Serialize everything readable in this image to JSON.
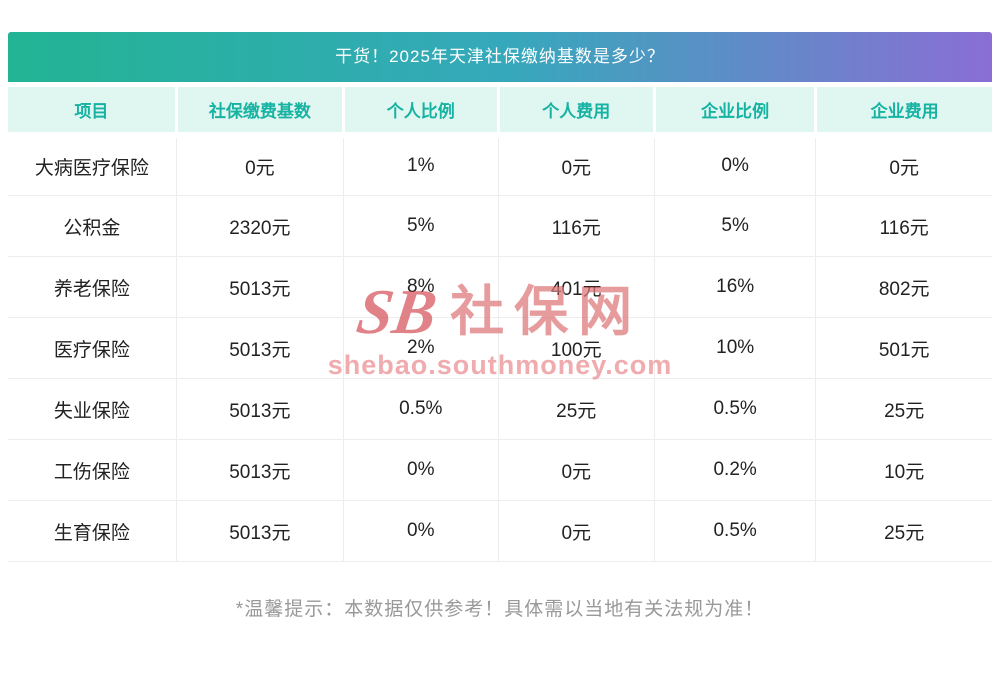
{
  "title": "干货！2025年天津社保缴纳基数是多少？",
  "table": {
    "headers": [
      "项目",
      "社保缴费基数",
      "个人比例",
      "个人费用",
      "企业比例",
      "企业费用"
    ],
    "rows": [
      [
        "大病医疗保险",
        "0元",
        "1%",
        "0元",
        "0%",
        "0元"
      ],
      [
        "公积金",
        "2320元",
        "5%",
        "116元",
        "5%",
        "116元"
      ],
      [
        "养老保险",
        "5013元",
        "8%",
        "401元",
        "16%",
        "802元"
      ],
      [
        "医疗保险",
        "5013元",
        "2%",
        "100元",
        "10%",
        "501元"
      ],
      [
        "失业保险",
        "5013元",
        "0.5%",
        "25元",
        "0.5%",
        "25元"
      ],
      [
        "工伤保险",
        "5013元",
        "0%",
        "0元",
        "0.2%",
        "10元"
      ],
      [
        "生育保险",
        "5013元",
        "0%",
        "0元",
        "0.5%",
        "25元"
      ]
    ]
  },
  "watermark": {
    "logo_text": "SB",
    "brand_text": "社保网",
    "url_text": "shebao.southmoney.com"
  },
  "footer_note": "*温馨提示：本数据仅供参考！具体需以当地有关法规为准！",
  "colors": {
    "title_gradient_start": "#22b493",
    "title_gradient_end": "#8a6ed4",
    "header_bg": "#e0f6f1",
    "header_text": "#17b3a2",
    "body_text": "#222222",
    "border": "#ededed",
    "note_text": "#999999",
    "watermark_red": "#c61c26"
  },
  "chart_data": {
    "type": "table",
    "title": "干货！2025年天津社保缴纳基数是多少？",
    "columns": [
      "项目",
      "社保缴费基数",
      "个人比例",
      "个人费用",
      "企业比例",
      "企业费用"
    ],
    "rows": [
      [
        "大病医疗保险",
        "0元",
        "1%",
        "0元",
        "0%",
        "0元"
      ],
      [
        "公积金",
        "2320元",
        "5%",
        "116元",
        "5%",
        "116元"
      ],
      [
        "养老保险",
        "5013元",
        "8%",
        "401元",
        "16%",
        "802元"
      ],
      [
        "医疗保险",
        "5013元",
        "2%",
        "100元",
        "10%",
        "501元"
      ],
      [
        "失业保险",
        "5013元",
        "0.5%",
        "25元",
        "0.5%",
        "25元"
      ],
      [
        "工伤保险",
        "5013元",
        "0%",
        "0元",
        "0.2%",
        "10元"
      ],
      [
        "生育保险",
        "5013元",
        "0%",
        "0元",
        "0.5%",
        "25元"
      ]
    ],
    "footnote": "*温馨提示：本数据仅供参考！具体需以当地有关法规为准！"
  }
}
